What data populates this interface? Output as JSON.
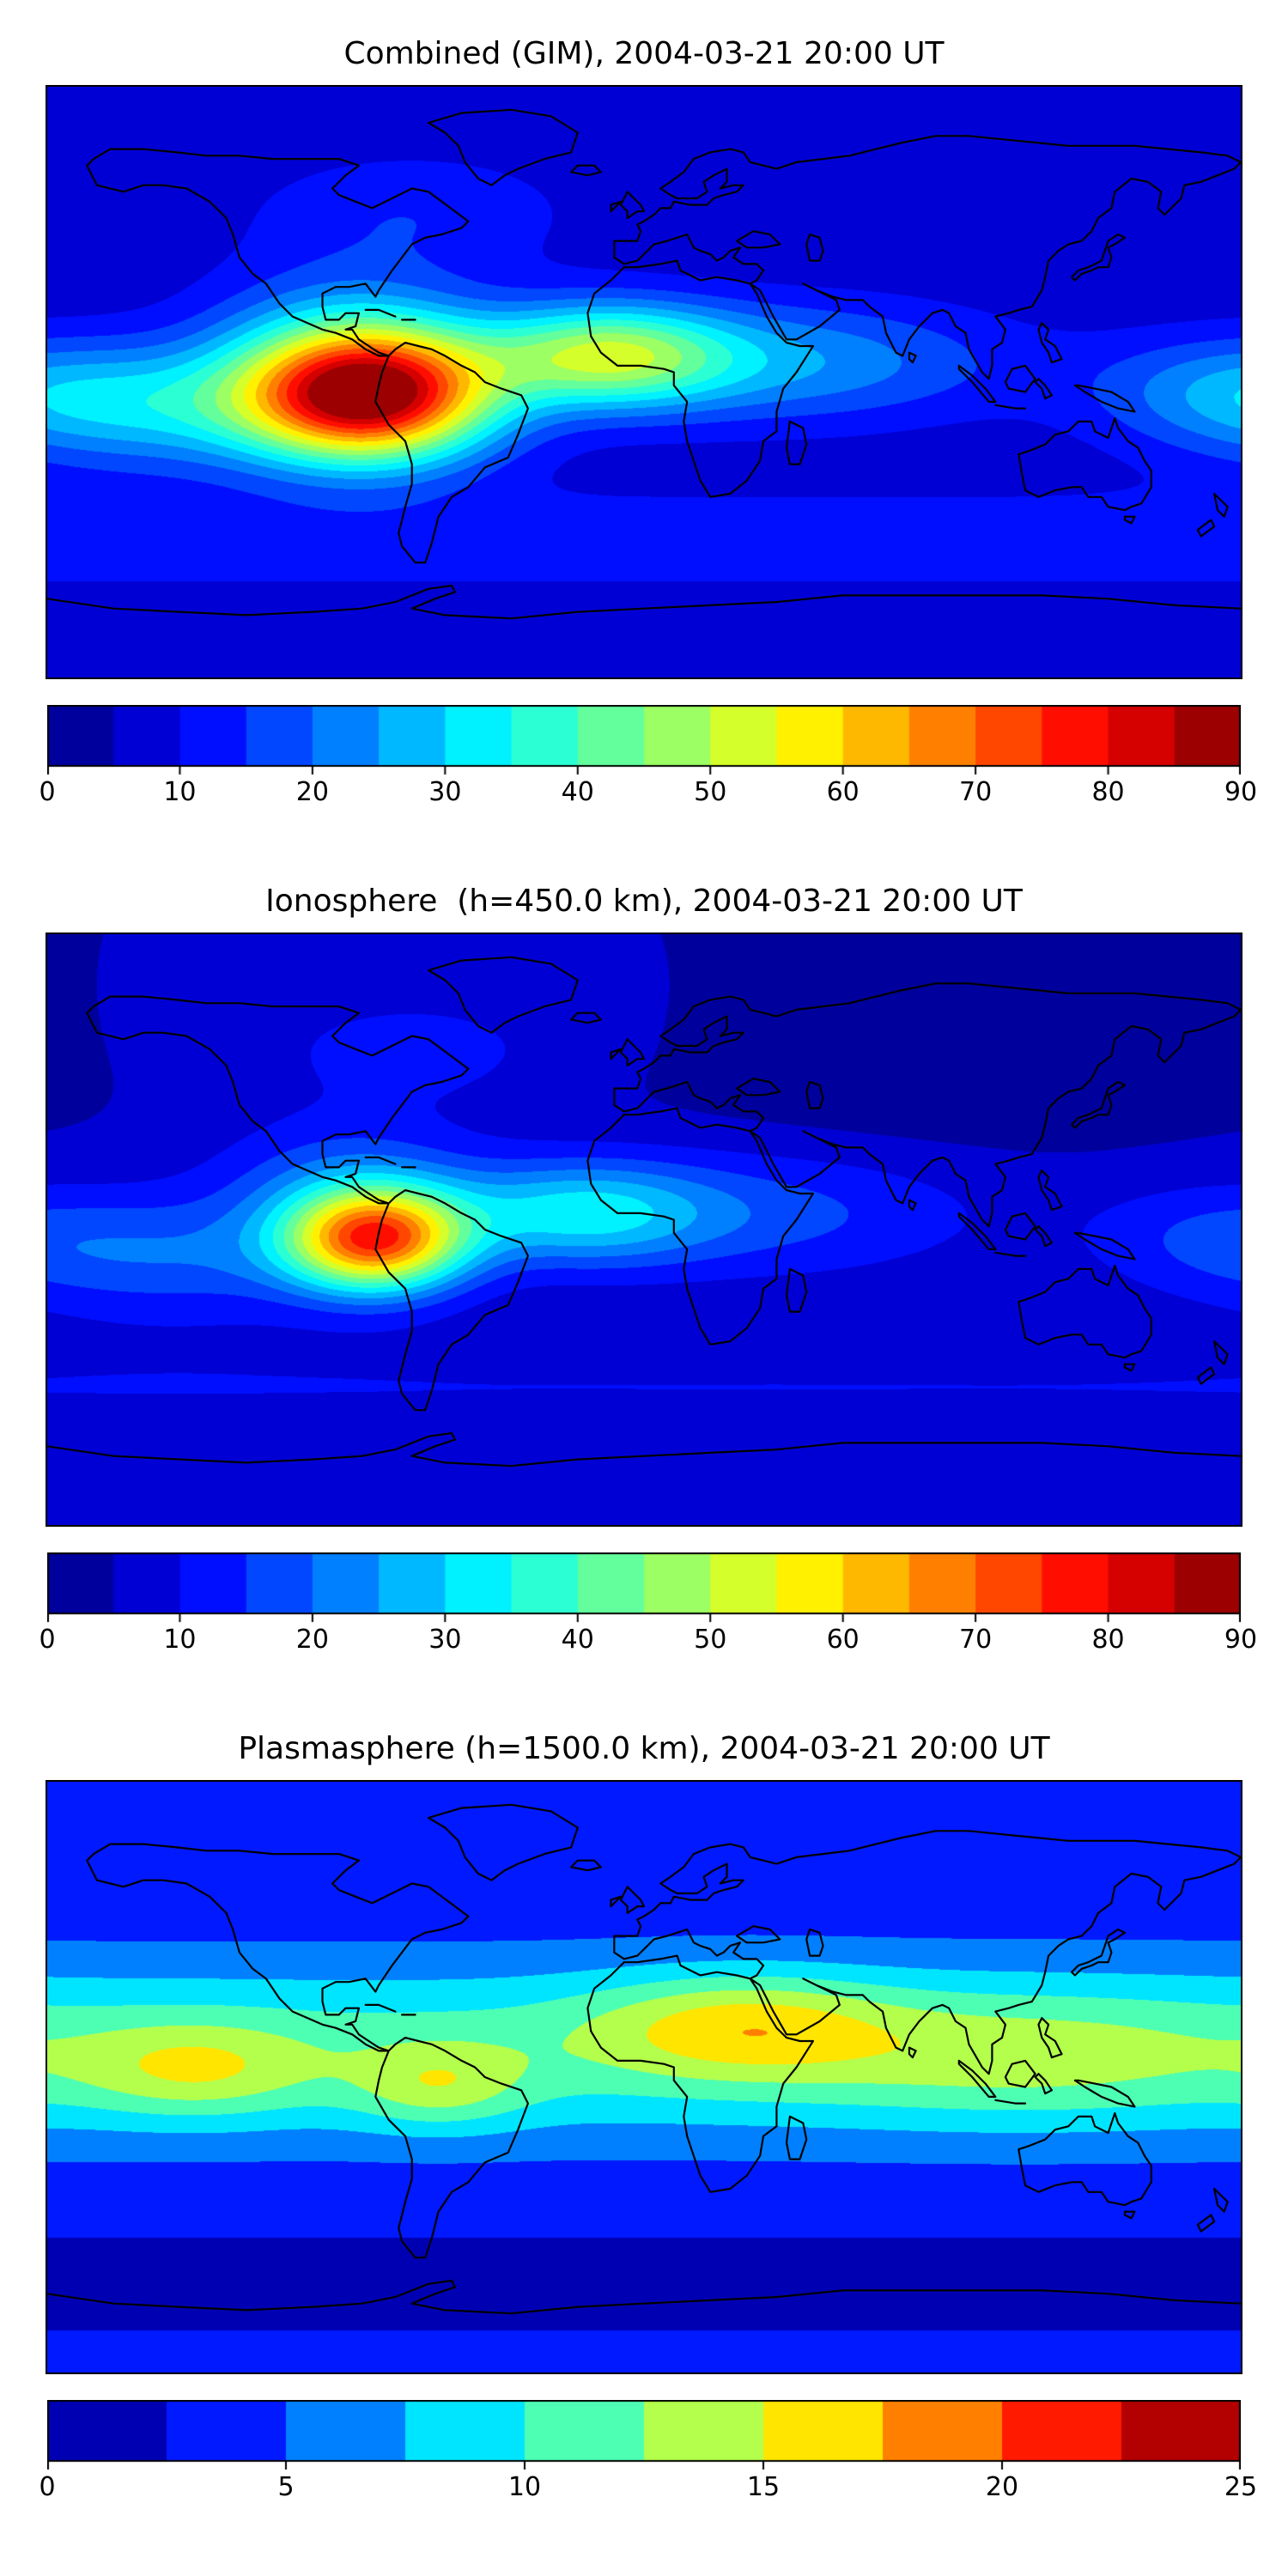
{
  "figure": {
    "background_color": "#ffffff",
    "coastline_color": "#000000",
    "panel_count": 3
  },
  "chart_data": [
    {
      "type": "heatmap",
      "title": "Combined (GIM), 2004-03-21 20:00 UT",
      "projection": "equirectangular world map with coastlines",
      "x": {
        "label": "",
        "range": [
          -180,
          180
        ]
      },
      "y": {
        "label": "",
        "range": [
          -90,
          90
        ]
      },
      "colormap": "jet",
      "grid": false,
      "legend_position": "colorbar-below",
      "levels": {
        "min": 0,
        "max": 90,
        "step": 5
      },
      "colorbar_ticks": [
        0,
        10,
        20,
        30,
        40,
        50,
        60,
        70,
        80,
        90
      ],
      "peak_value_estimate": 87,
      "peak_location": {
        "lon": -83,
        "lat": -4
      },
      "field": {
        "representation": "sum of gaussian components over lon/lat approximating the contoured TEC field",
        "base": 6,
        "components": [
          {
            "amp": 80,
            "lon": -83,
            "lat": -4,
            "sigma_lon": 26,
            "sigma_lat": 14
          },
          {
            "amp": 38,
            "lon": -12,
            "lat": 8,
            "sigma_lon": 26,
            "sigma_lat": 11
          },
          {
            "amp": 20,
            "lon": -145,
            "lat": -8,
            "sigma_lon": 38,
            "sigma_lat": 13
          },
          {
            "amp": 18,
            "lon": 45,
            "lat": 6,
            "sigma_lon": 45,
            "sigma_lat": 13
          },
          {
            "amp": 12,
            "lon": 175,
            "lat": -2,
            "sigma_lon": 30,
            "sigma_lat": 12
          },
          {
            "amp": 14,
            "lon": -90,
            "lat": 15,
            "sigma_lon": 30,
            "sigma_lat": 16
          },
          {
            "amp": 8,
            "lon": -70,
            "lat": 52,
            "sigma_lon": 35,
            "sigma_lat": 13
          },
          {
            "amp": 7,
            "lon": 0,
            "lat": -48,
            "sigma_lon": 10000,
            "sigma_lat": 12
          }
        ]
      }
    },
    {
      "type": "heatmap",
      "title": "Ionosphere  (h=450.0 km), 2004-03-21 20:00 UT",
      "projection": "equirectangular world map with coastlines",
      "x": {
        "label": "",
        "range": [
          -180,
          180
        ]
      },
      "y": {
        "label": "",
        "range": [
          -90,
          90
        ]
      },
      "colormap": "jet",
      "grid": false,
      "legend_position": "colorbar-below",
      "levels": {
        "min": 0,
        "max": 90,
        "step": 5
      },
      "colorbar_ticks": [
        0,
        10,
        20,
        30,
        40,
        50,
        60,
        70,
        80,
        90
      ],
      "peak_value_estimate": 74,
      "peak_location": {
        "lon": -81,
        "lat": -3
      },
      "field": {
        "representation": "sum of gaussian components over lon/lat approximating the contoured TEC field",
        "base": 5,
        "components": [
          {
            "amp": 64,
            "lon": -81,
            "lat": -3,
            "sigma_lon": 19,
            "sigma_lat": 11
          },
          {
            "amp": 24,
            "lon": -20,
            "lat": 5,
            "sigma_lon": 28,
            "sigma_lat": 11
          },
          {
            "amp": 12,
            "lon": -90,
            "lat": 15,
            "sigma_lon": 28,
            "sigma_lat": 14
          },
          {
            "amp": 13,
            "lon": -140,
            "lat": -8,
            "sigma_lon": 36,
            "sigma_lat": 13
          },
          {
            "amp": 11,
            "lon": 40,
            "lat": 5,
            "sigma_lon": 45,
            "sigma_lat": 14
          },
          {
            "amp": 8,
            "lon": 170,
            "lat": -2,
            "sigma_lon": 28,
            "sigma_lat": 12
          },
          {
            "amp": 7,
            "lon": -70,
            "lat": 55,
            "sigma_lon": 35,
            "sigma_lat": 13
          },
          {
            "amp": 5,
            "lon": 0,
            "lat": -48,
            "sigma_lon": 10000,
            "sigma_lat": 12
          },
          {
            "amp": -3.5,
            "lon": 85,
            "lat": 45,
            "sigma_lon": 50,
            "sigma_lat": 16
          }
        ]
      }
    },
    {
      "type": "heatmap",
      "title": "Plasmasphere (h=1500.0 km), 2004-03-21 20:00 UT",
      "projection": "equirectangular world map with coastlines",
      "x": {
        "label": "",
        "range": [
          -180,
          180
        ]
      },
      "y": {
        "label": "",
        "range": [
          -90,
          90
        ]
      },
      "colormap": "jet",
      "grid": false,
      "legend_position": "colorbar-below",
      "levels": {
        "min": 0,
        "max": 25,
        "step": 2.5
      },
      "colorbar_ticks": [
        0,
        5,
        10,
        15,
        20,
        25
      ],
      "peak_value_estimate": 17,
      "peak_location": {
        "lon": 30,
        "lat": 16
      },
      "field": {
        "representation": "sum of gaussian components over lon/lat approximating the contoured TEC field",
        "base": 3,
        "components": [
          {
            "amp": 8,
            "lon": 0,
            "lat": 8,
            "sigma_lon": 10000,
            "sigma_lat": 20
          },
          {
            "amp": 6.5,
            "lon": 30,
            "lat": 16,
            "sigma_lon": 32,
            "sigma_lat": 11
          },
          {
            "amp": 5,
            "lon": -135,
            "lat": 2,
            "sigma_lon": 24,
            "sigma_lat": 10
          },
          {
            "amp": 5,
            "lon": -62,
            "lat": -3,
            "sigma_lon": 18,
            "sigma_lat": 9
          },
          {
            "amp": 3.2,
            "lon": 115,
            "lat": 6,
            "sigma_lon": 45,
            "sigma_lat": 14
          },
          {
            "amp": -1.3,
            "lon": 0,
            "lat": -62,
            "sigma_lon": 10000,
            "sigma_lat": 11
          }
        ]
      }
    }
  ]
}
